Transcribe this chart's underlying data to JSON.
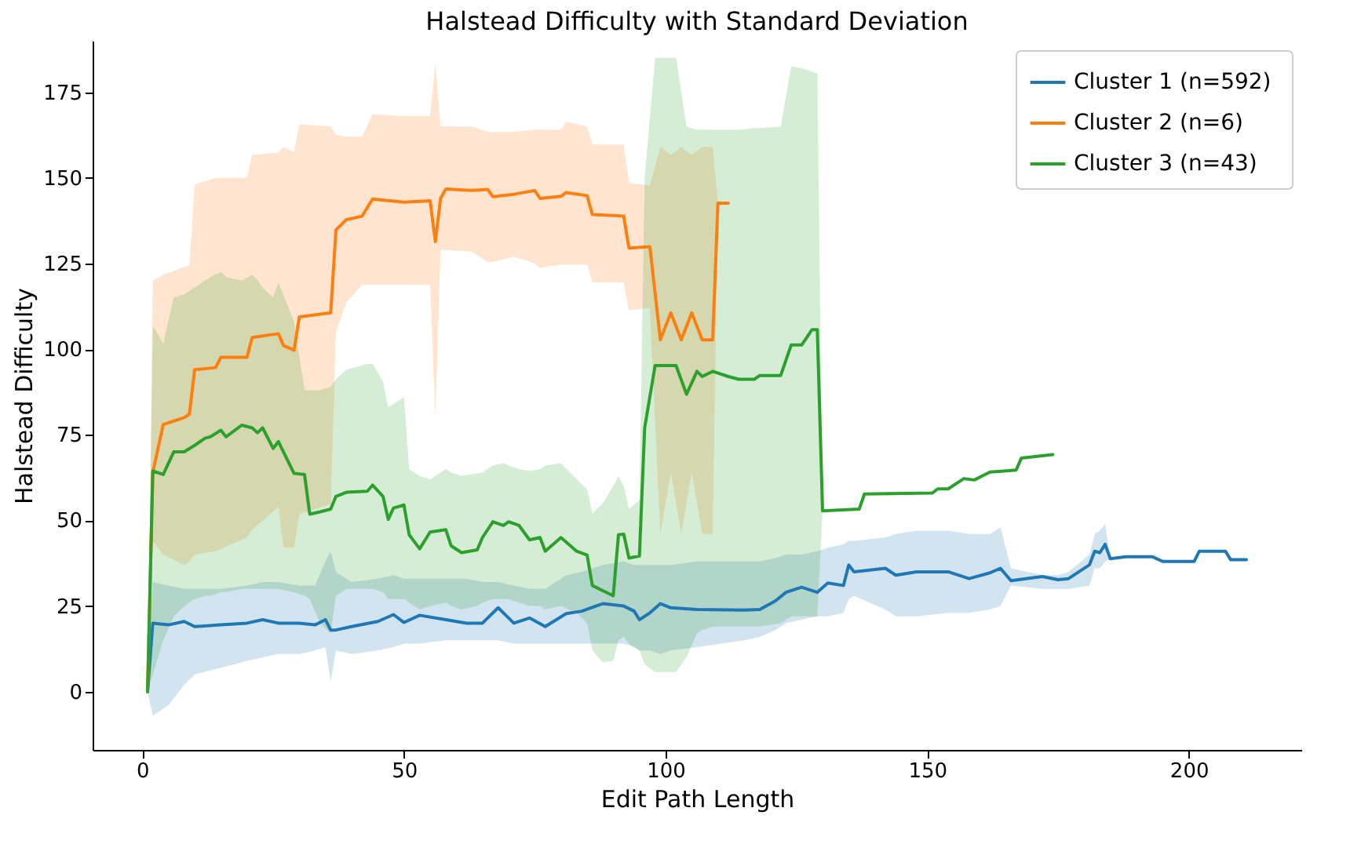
{
  "chart_data": {
    "type": "line",
    "title": "Halstead Difficulty with Standard Deviation",
    "xlabel": "Edit Path Length",
    "ylabel": "Halstead Difficulty",
    "xlim": [
      -9.5,
      221.5
    ],
    "ylim": [
      -17,
      190
    ],
    "xticks": [
      0,
      50,
      100,
      150,
      200
    ],
    "yticks": [
      0,
      25,
      50,
      75,
      100,
      125,
      150,
      175
    ],
    "grid": false,
    "legend": "top right",
    "marker": "none",
    "line_style": "solid",
    "series": [
      {
        "name": "Cluster 1  (n=592)",
        "color": "#1f77b4",
        "x": [
          1,
          2,
          5,
          8,
          10,
          15,
          20,
          23,
          26,
          30,
          33,
          35,
          36,
          37,
          40,
          45,
          48,
          50,
          53,
          58,
          62,
          65,
          68,
          71,
          74,
          77,
          81,
          84,
          88,
          92,
          94,
          95,
          97,
          99,
          101,
          106,
          115,
          118,
          121,
          123,
          126,
          129,
          131,
          134,
          135,
          136,
          142,
          144,
          148,
          154,
          158,
          162,
          164,
          166,
          172,
          175,
          177,
          181,
          182,
          183,
          184,
          185,
          188,
          193,
          195,
          201,
          202,
          207,
          208,
          211
        ],
        "values": [
          0,
          20,
          19.5,
          20.5,
          19,
          19.5,
          20,
          21,
          20,
          20,
          19.5,
          21,
          18,
          18,
          19,
          20.5,
          22.5,
          20.2,
          22.3,
          21,
          20,
          20,
          24.5,
          20,
          21.5,
          19,
          22.8,
          23.5,
          25.7,
          25,
          23.5,
          21,
          23,
          25.7,
          24.5,
          24,
          23.8,
          24,
          26.5,
          29,
          30.5,
          29,
          31.7,
          31,
          37,
          35,
          36,
          34,
          35,
          35,
          33,
          34.7,
          36,
          32.4,
          33.6,
          32.7,
          33,
          37,
          41,
          40.6,
          43,
          38.8,
          39.4,
          39.4,
          38,
          38,
          41,
          41,
          38.5,
          38.5
        ],
        "lower": [
          0,
          -7,
          -4,
          2,
          5,
          7,
          9,
          10,
          11,
          11,
          12,
          13,
          3,
          12,
          11,
          12,
          13,
          14,
          14,
          15,
          15,
          15,
          15,
          14,
          14,
          14,
          14,
          14,
          14,
          14,
          13,
          12,
          12,
          11,
          12,
          13,
          15,
          16,
          18,
          20,
          21,
          22,
          22,
          23,
          27,
          28,
          24,
          22,
          22,
          23,
          23,
          24,
          25,
          31,
          30,
          30,
          30,
          31,
          36,
          36,
          38,
          38.8,
          39.4,
          39.4,
          38,
          38,
          41,
          41,
          38.5,
          38.5
        ],
        "upper": [
          0,
          32,
          31,
          30,
          30,
          30,
          31,
          32,
          32,
          31,
          31,
          38,
          41,
          35,
          32,
          33,
          34,
          33,
          33,
          33,
          33,
          32,
          32,
          31,
          30,
          30,
          34,
          35,
          37,
          38,
          37,
          37,
          37,
          37,
          37,
          38,
          38,
          38,
          39,
          40,
          40,
          41,
          42,
          43,
          44,
          44,
          45,
          46,
          47,
          47,
          46,
          46,
          48,
          36,
          34,
          34,
          35,
          40,
          46,
          47,
          49,
          38.8,
          39.4,
          39.4,
          38,
          38,
          41,
          41,
          38.5,
          38.5
        ]
      },
      {
        "name": "Cluster 2  (n=6)",
        "color": "#ff7f0e",
        "x": [
          1,
          2,
          4,
          8,
          9,
          10,
          14,
          15,
          20,
          21,
          26,
          27,
          29,
          30,
          36,
          37,
          39,
          42,
          44,
          50,
          55,
          56,
          57,
          58,
          63,
          66,
          67,
          71,
          75,
          76,
          80,
          81,
          85,
          86,
          92,
          93,
          97,
          99,
          101,
          103,
          105,
          107,
          109,
          110,
          112
        ],
        "values": [
          0,
          64,
          78,
          80,
          81,
          94,
          94.6,
          97.6,
          97.6,
          103.4,
          104.5,
          101,
          99.7,
          109.4,
          110.6,
          134.8,
          137.8,
          138.8,
          143.8,
          142.9,
          143.3,
          131.4,
          144,
          146.7,
          146.3,
          146.6,
          144.5,
          145.2,
          146.3,
          144,
          144.6,
          145.7,
          144.8,
          139.3,
          138.8,
          129.5,
          129.9,
          102.7,
          110.6,
          102.7,
          110.6,
          102.7,
          102.7,
          142.6,
          142.6
        ],
        "lower": [
          0,
          44,
          40,
          37,
          38,
          40,
          41,
          41.7,
          45,
          47.3,
          54,
          42,
          42,
          51.8,
          54.8,
          105,
          113.5,
          118.8,
          118.8,
          118.8,
          118.8,
          80,
          129,
          129,
          128.4,
          125.4,
          125.4,
          127,
          125,
          123.7,
          124.7,
          124.7,
          124.7,
          119.5,
          119.5,
          111.3,
          112,
          46,
          64,
          46,
          64,
          46,
          46,
          142.6,
          142.6
        ],
        "upper": [
          0,
          120,
          121.7,
          124,
          124.4,
          148,
          150,
          150,
          150,
          156.7,
          157.4,
          159,
          157.4,
          165.6,
          165,
          162.6,
          162,
          162,
          168.6,
          168,
          168,
          183.5,
          165,
          165,
          165,
          163.4,
          163.4,
          163.4,
          164,
          164,
          164,
          166.4,
          165,
          159.7,
          159.7,
          148.5,
          147.8,
          159,
          156.7,
          159,
          156.7,
          159,
          159,
          142.6,
          142.6
        ]
      },
      {
        "name": "Cluster 3  (n=43)",
        "color": "#2ca02c",
        "x": [
          1,
          2,
          4,
          6,
          8,
          10,
          12,
          13,
          15,
          16,
          19,
          21,
          22,
          23,
          25,
          26,
          29,
          31,
          32,
          34,
          36,
          37,
          39,
          43,
          44,
          46,
          47,
          48,
          50,
          51,
          53,
          55,
          58,
          59,
          61,
          64,
          65,
          67,
          69,
          70,
          72,
          74,
          76,
          77,
          80,
          83,
          85,
          86,
          88,
          90,
          91,
          92,
          93,
          95,
          96,
          98,
          99,
          102,
          104,
          106,
          107,
          109,
          112,
          114,
          117,
          118,
          122,
          124,
          126,
          128,
          129,
          130,
          137,
          138,
          151,
          152,
          154,
          157,
          159,
          162,
          167,
          168,
          174
        ],
        "values": [
          0,
          64.4,
          63.4,
          70,
          70,
          71.9,
          74,
          74.4,
          76.3,
          74.4,
          77.8,
          77,
          75.6,
          77,
          71,
          73,
          63.7,
          63.4,
          51.8,
          52.5,
          53.3,
          57,
          58.2,
          58.5,
          60.3,
          57,
          50.3,
          53.6,
          54.5,
          45.8,
          41.7,
          46.6,
          47.3,
          42.6,
          40.6,
          41.4,
          45,
          49.6,
          48.5,
          49.6,
          48.5,
          44.3,
          45,
          41,
          45,
          41,
          39.9,
          31,
          29.5,
          28,
          45.8,
          46,
          39,
          39.6,
          77,
          95.2,
          95.2,
          95.2,
          86.8,
          93.5,
          92,
          93.5,
          92,
          91.2,
          91.2,
          92.3,
          92.3,
          101.2,
          101.2,
          105.7,
          105.7,
          52.8,
          53.3,
          57.7,
          58,
          59.2,
          59.2,
          62.2,
          61.8,
          64.1,
          64.7,
          68.2,
          69.2
        ],
        "lower": [
          0,
          5,
          15,
          22,
          25,
          27,
          28,
          28,
          29,
          29,
          30,
          30,
          30,
          30,
          30,
          30,
          29,
          28,
          27,
          20,
          17,
          28,
          30,
          30,
          30,
          29,
          27,
          27,
          27,
          26,
          24,
          25,
          26,
          25,
          24,
          25,
          26,
          27,
          27,
          27,
          26,
          25,
          25,
          24,
          25,
          23,
          20,
          12,
          8.6,
          9,
          15,
          16,
          14,
          12,
          8,
          5.7,
          5.7,
          5.7,
          10,
          17,
          18,
          19,
          19,
          19,
          19,
          19,
          20,
          22,
          22,
          22,
          22,
          52.8,
          53.3,
          57.7,
          58,
          59.2,
          59.2,
          62.2,
          61.8,
          64.1,
          64.7,
          68.2,
          69.2
        ],
        "upper": [
          0,
          106.8,
          101.6,
          115,
          116,
          118,
          120,
          121,
          122.5,
          121,
          120,
          121.7,
          120.2,
          118,
          115,
          119.5,
          108,
          88,
          88,
          88,
          89,
          91.2,
          94,
          95.7,
          95.7,
          90.5,
          83,
          84,
          86,
          65,
          63,
          62,
          65,
          64,
          63,
          63.7,
          64,
          66,
          66.7,
          66,
          65,
          64.4,
          65,
          66,
          66.7,
          62,
          59,
          52,
          55,
          60,
          63,
          60,
          53.3,
          56,
          150,
          185,
          185,
          185,
          164.9,
          164,
          164,
          164,
          164,
          164,
          164.5,
          164.5,
          164.9,
          182.5,
          182,
          181,
          180.5,
          52.8,
          53.3,
          57.7,
          58,
          59.2,
          59.2,
          62.2,
          61.8,
          64.1,
          64.7,
          68.2,
          69.2
        ]
      }
    ]
  }
}
